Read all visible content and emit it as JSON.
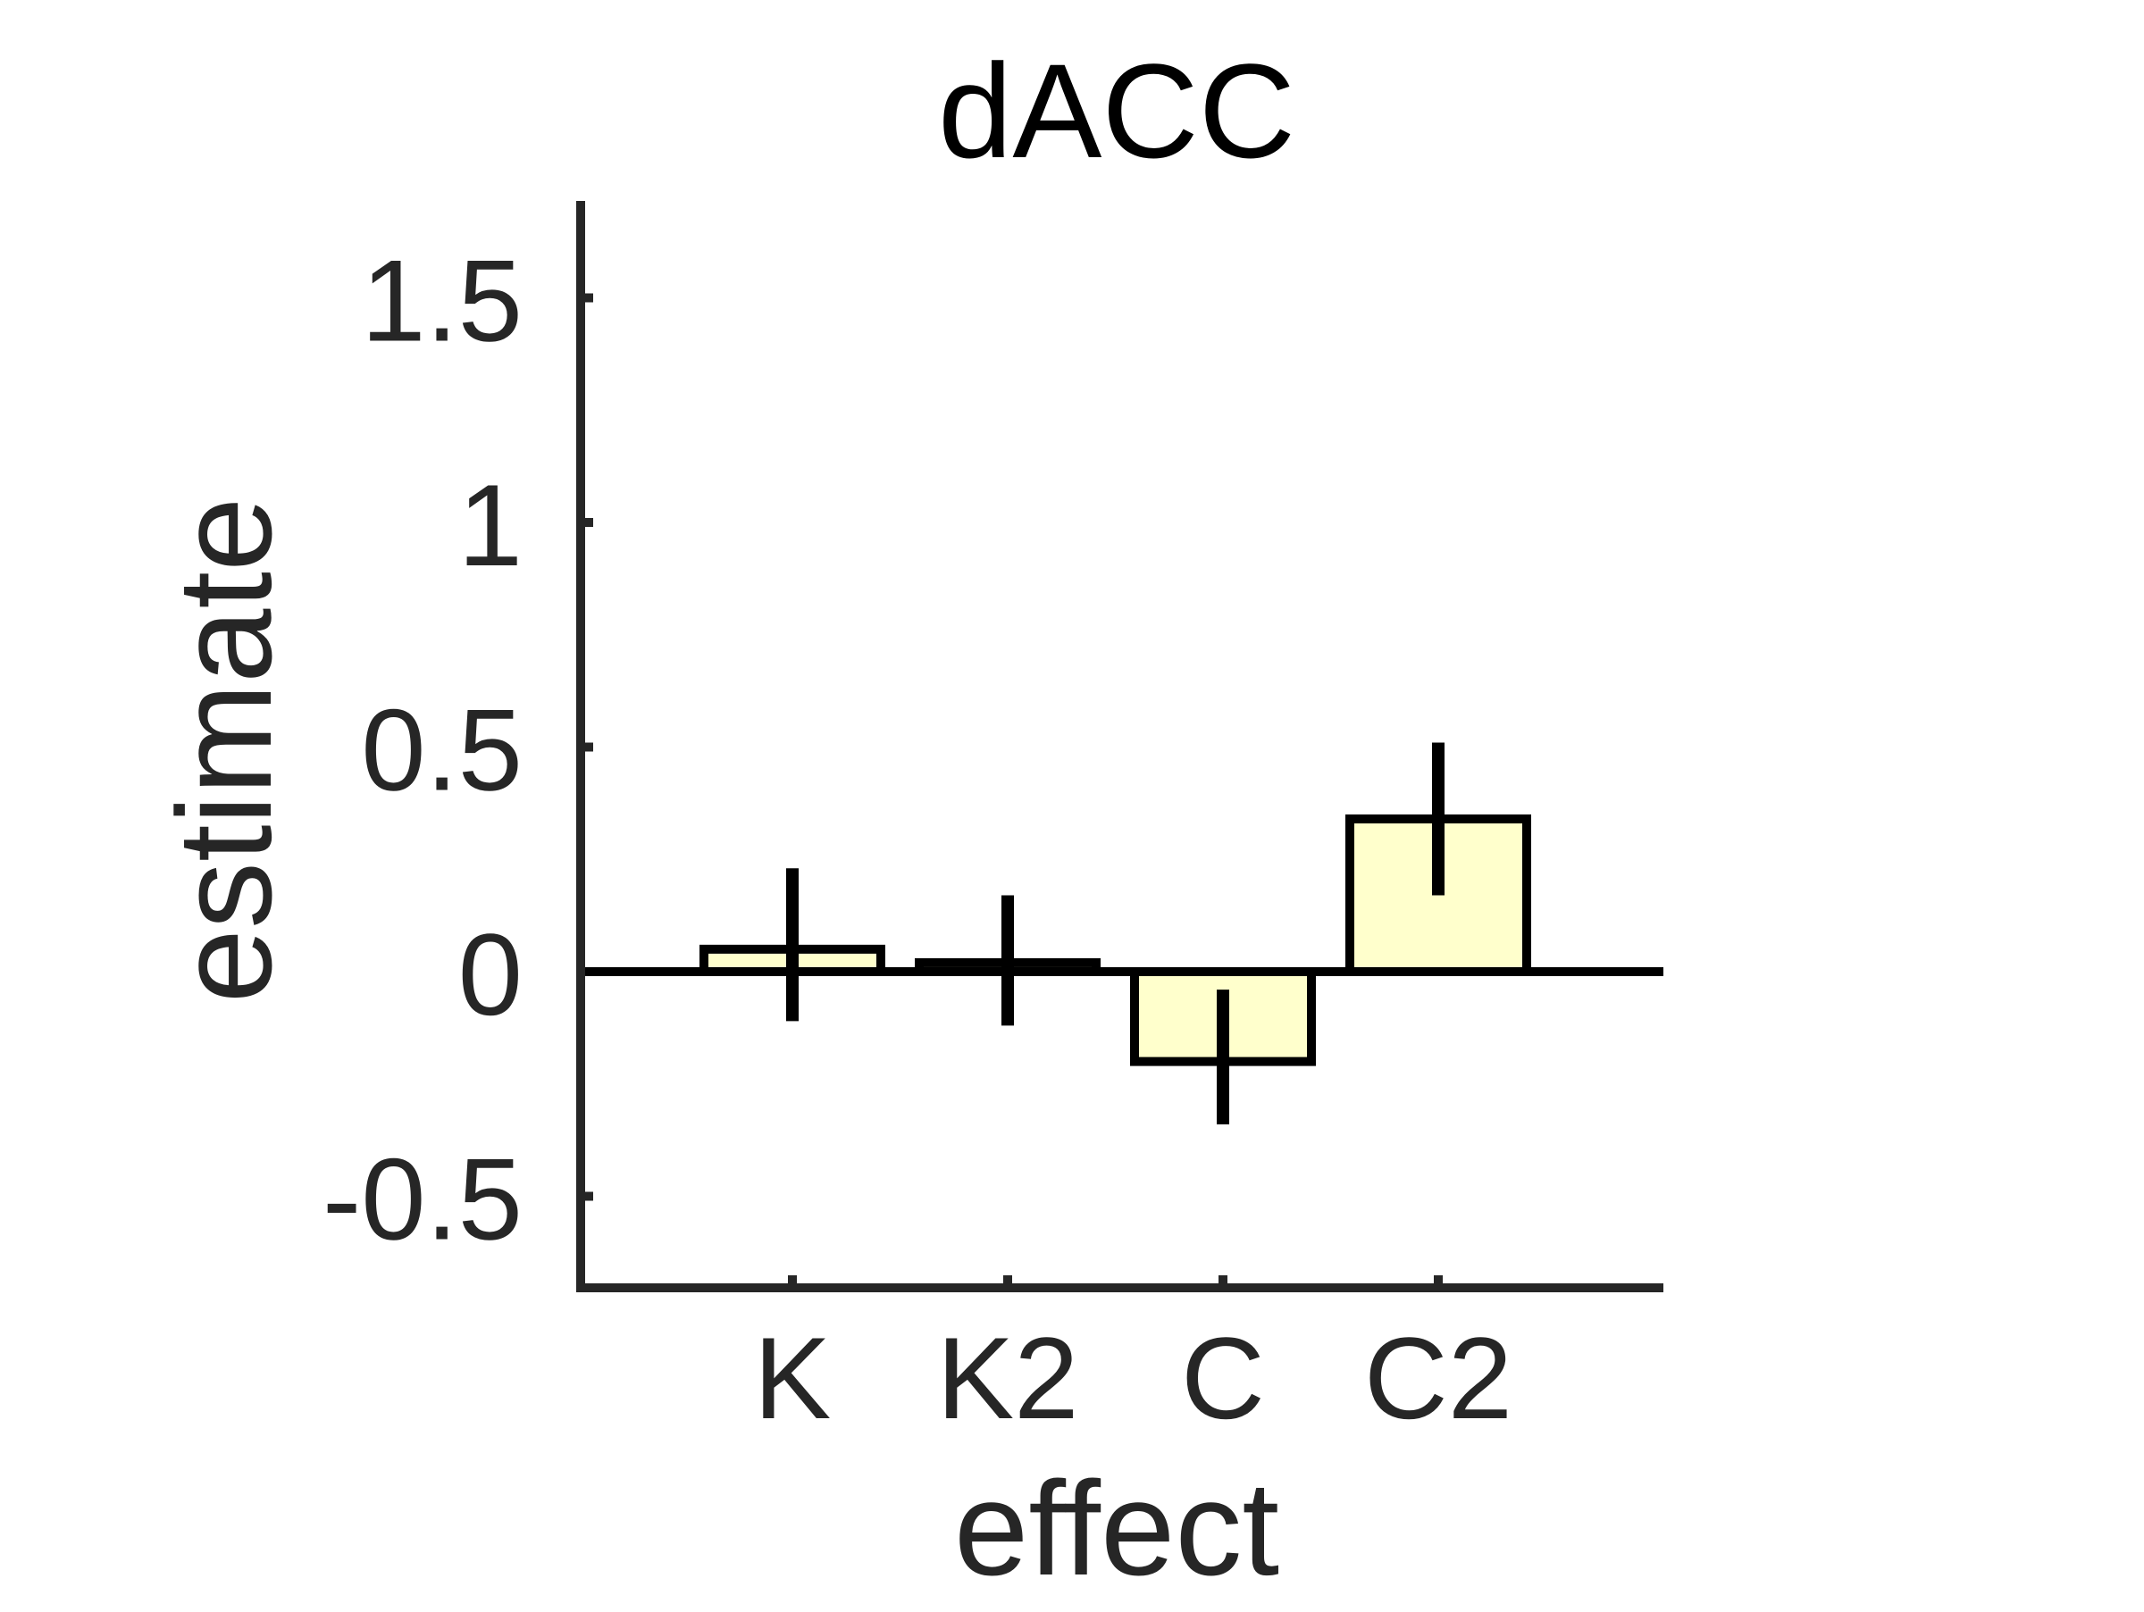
{
  "chart_data": {
    "type": "bar",
    "title": "dACC",
    "xlabel": "effect",
    "ylabel": "estimate",
    "categories": [
      "K",
      "K2",
      "C",
      "C2"
    ],
    "values": [
      0.05,
      0.02,
      -0.2,
      0.34
    ],
    "error_low": [
      -0.11,
      -0.12,
      -0.34,
      0.17
    ],
    "error_high": [
      0.23,
      0.17,
      -0.04,
      0.51
    ],
    "yticks": [
      -0.5,
      0,
      0.5,
      1,
      1.5
    ],
    "ytick_labels": [
      "-0.5",
      "0",
      "0.5",
      "1",
      "1.5"
    ],
    "ylim": [
      -0.7,
      1.7
    ],
    "bar_color": "#FFFFCC",
    "edge_color": "#000000",
    "axis_color": "#262626",
    "grid": false
  }
}
